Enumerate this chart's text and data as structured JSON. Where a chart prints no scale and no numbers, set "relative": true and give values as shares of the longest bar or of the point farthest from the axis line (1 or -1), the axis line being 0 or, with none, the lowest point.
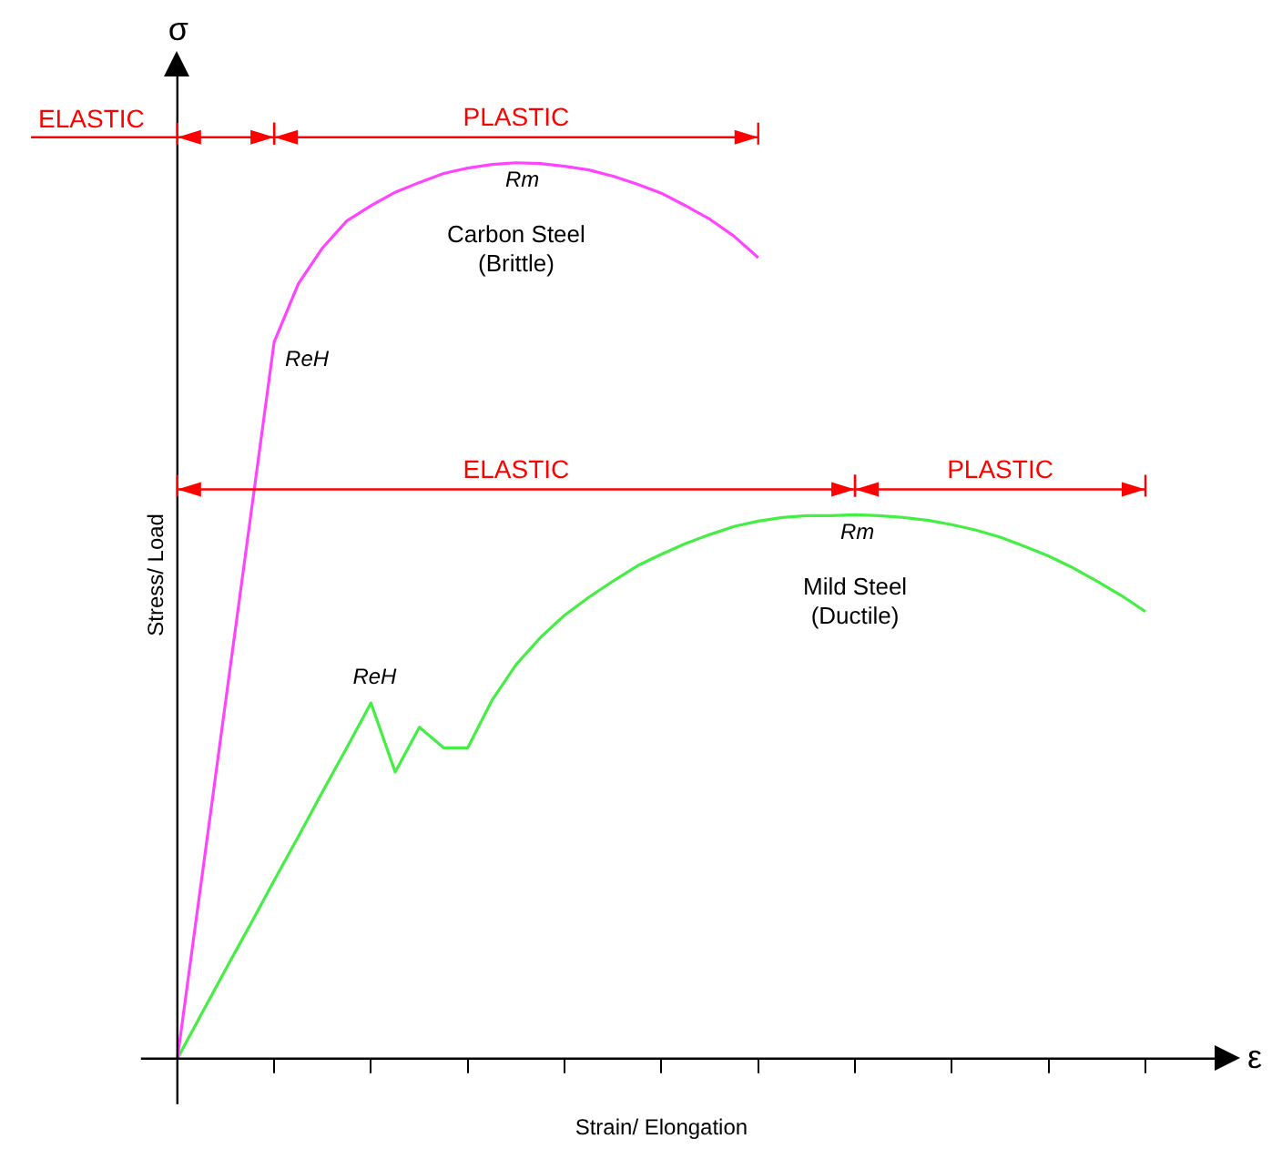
{
  "chart_data": {
    "type": "line",
    "relative": true,
    "xlabel": "Strain/ Elongation",
    "ylabel": "Stress/ Load",
    "categories": [
      null,
      null,
      null,
      null,
      null,
      null,
      null,
      null,
      null,
      null,
      null,
      null,
      null,
      null,
      null,
      null,
      null,
      null,
      null,
      null,
      null,
      null,
      null,
      null,
      null,
      null,
      null,
      null,
      null,
      null,
      null,
      null,
      null,
      null,
      null,
      null,
      null,
      null,
      null,
      null,
      null
    ],
    "series": [
      {
        "name": "Carbon Steel\n(Brittle)",
        "color": "#ff44ff",
        "values": [
          0,
          0.2,
          0.4,
          0.6,
          0.8,
          0.865,
          0.905,
          0.935,
          0.952,
          0.967,
          0.978,
          0.988,
          0.994,
          0.998,
          1.0,
          0.999,
          0.996,
          0.992,
          0.985,
          0.976,
          0.966,
          0.952,
          0.937,
          0.918,
          0.894,
          null,
          null,
          null,
          null,
          null,
          null,
          null,
          null,
          null,
          null,
          null,
          null,
          null,
          null,
          null,
          null
        ]
      },
      {
        "name": "Mild Steel\n(Ductile)",
        "color": "#44ee44",
        "values": [
          0,
          0.05,
          0.1,
          0.149,
          0.199,
          0.248,
          0.298,
          0.347,
          0.397,
          0.32,
          0.37,
          0.347,
          0.347,
          0.4,
          0.44,
          0.47,
          0.495,
          0.515,
          0.533,
          0.55,
          0.563,
          0.575,
          0.585,
          0.594,
          0.6,
          0.604,
          0.606,
          0.606,
          0.607,
          0.606,
          0.604,
          0.601,
          0.596,
          0.59,
          0.582,
          0.572,
          0.561,
          0.548,
          0.533,
          0.517,
          0.499
        ]
      }
    ],
    "annotations": [
      "σ",
      "ε",
      "ELASTIC",
      "PLASTIC",
      "ELASTIC",
      "PLASTIC",
      "ReH",
      "Rm",
      "ReH",
      "Rm"
    ],
    "grid": false,
    "legend": false,
    "marker": "none",
    "line_style": "solid"
  }
}
